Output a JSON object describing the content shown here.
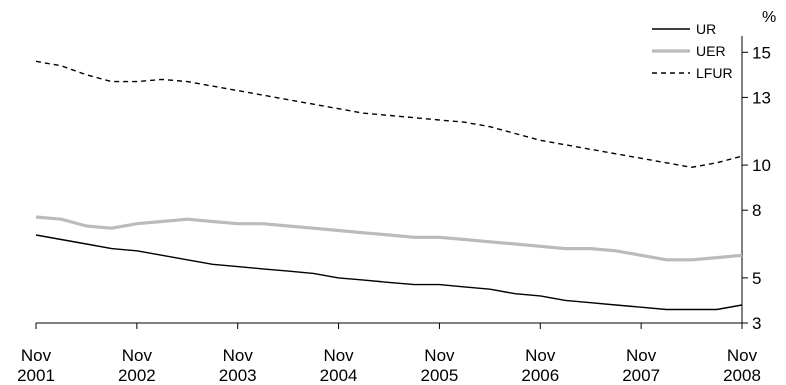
{
  "chart_data": {
    "type": "line",
    "title": "",
    "xlabel": "",
    "ylabel": "%",
    "x_tick_labels": [
      [
        "Nov",
        "2001"
      ],
      [
        "Nov",
        "2002"
      ],
      [
        "Nov",
        "2003"
      ],
      [
        "Nov",
        "2004"
      ],
      [
        "Nov",
        "2005"
      ],
      [
        "Nov",
        "2006"
      ],
      [
        "Nov",
        "2007"
      ],
      [
        "Nov",
        "2008"
      ]
    ],
    "x_range": [
      2001.833,
      2008.833
    ],
    "ylim": [
      3,
      15.5
    ],
    "y_axis_side": "right",
    "y_tick_values": [
      3,
      5,
      8,
      10,
      13,
      15
    ],
    "y_tick_labels": [
      "3",
      "5",
      "8",
      "10",
      "13",
      "15"
    ],
    "grid": false,
    "legend_position": "top-right",
    "series": [
      {
        "name": "UR",
        "style": "solid",
        "color": "#000000",
        "x": [
          2001.833,
          2002.083,
          2002.333,
          2002.583,
          2002.833,
          2003.083,
          2003.333,
          2003.583,
          2003.833,
          2004.083,
          2004.333,
          2004.583,
          2004.833,
          2005.083,
          2005.333,
          2005.583,
          2005.833,
          2006.083,
          2006.333,
          2006.583,
          2006.833,
          2007.083,
          2007.333,
          2007.583,
          2007.833,
          2008.083,
          2008.333,
          2008.583,
          2008.833
        ],
        "values": [
          6.9,
          6.7,
          6.5,
          6.3,
          6.2,
          6.0,
          5.8,
          5.6,
          5.5,
          5.4,
          5.3,
          5.2,
          5.0,
          4.9,
          4.8,
          4.7,
          4.7,
          4.6,
          4.5,
          4.3,
          4.2,
          4.0,
          3.9,
          3.8,
          3.7,
          3.6,
          3.6,
          3.6,
          3.8
        ]
      },
      {
        "name": "UER",
        "style": "solid",
        "color": "#bbbbbb",
        "x": [
          2001.833,
          2002.083,
          2002.333,
          2002.583,
          2002.833,
          2003.083,
          2003.333,
          2003.583,
          2003.833,
          2004.083,
          2004.333,
          2004.583,
          2004.833,
          2005.083,
          2005.333,
          2005.583,
          2005.833,
          2006.083,
          2006.333,
          2006.583,
          2006.833,
          2007.083,
          2007.333,
          2007.583,
          2007.833,
          2008.083,
          2008.333,
          2008.583,
          2008.833
        ],
        "values": [
          7.7,
          7.6,
          7.3,
          7.2,
          7.4,
          7.5,
          7.6,
          7.5,
          7.4,
          7.4,
          7.3,
          7.2,
          7.1,
          7.0,
          6.9,
          6.8,
          6.8,
          6.7,
          6.6,
          6.5,
          6.4,
          6.3,
          6.3,
          6.2,
          6.0,
          5.8,
          5.8,
          5.9,
          6.0
        ]
      },
      {
        "name": "LFUR",
        "style": "dashed",
        "color": "#000000",
        "x": [
          2001.833,
          2002.083,
          2002.333,
          2002.583,
          2002.833,
          2003.083,
          2003.333,
          2003.583,
          2003.833,
          2004.083,
          2004.333,
          2004.583,
          2004.833,
          2005.083,
          2005.333,
          2005.583,
          2005.833,
          2006.083,
          2006.333,
          2006.583,
          2006.833,
          2007.083,
          2007.333,
          2007.583,
          2007.833,
          2008.083,
          2008.333,
          2008.583,
          2008.833
        ],
        "values": [
          14.6,
          14.4,
          14.0,
          13.7,
          13.7,
          13.8,
          13.7,
          13.5,
          13.3,
          13.1,
          12.9,
          12.7,
          12.5,
          12.3,
          12.2,
          12.1,
          12.0,
          11.9,
          11.7,
          11.4,
          11.1,
          10.9,
          10.7,
          10.5,
          10.3,
          10.1,
          9.9,
          10.1,
          10.4
        ]
      }
    ]
  }
}
